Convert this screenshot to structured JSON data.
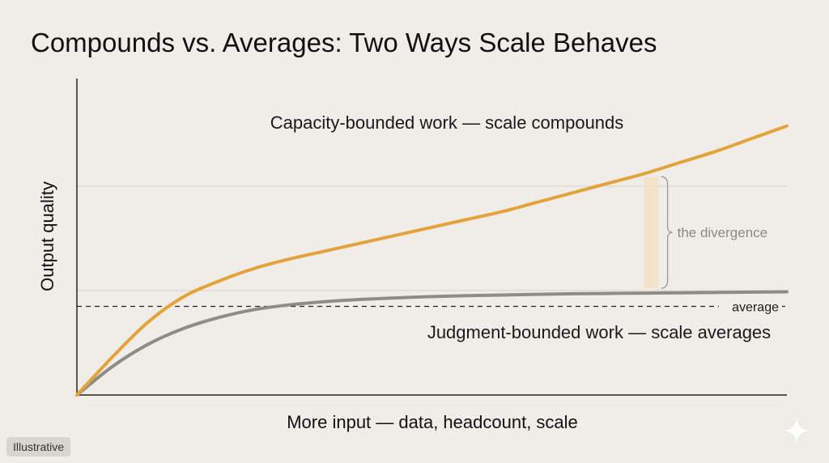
{
  "chart_data": {
    "type": "line",
    "title": "Compounds vs. Averages: Two Ways Scale Behaves",
    "xlabel": "More input — data, headcount, scale",
    "ylabel": "Output quality",
    "x": [
      0,
      0.05,
      0.1,
      0.15,
      0.2,
      0.25,
      0.3,
      0.35,
      0.4,
      0.45,
      0.5,
      0.55,
      0.6,
      0.65,
      0.7,
      0.75,
      0.8,
      0.85,
      0.9,
      0.95,
      1
    ],
    "xlim": [
      0,
      1
    ],
    "ylim": [
      0,
      1
    ],
    "grid": "horizontal",
    "series": [
      {
        "name": "Capacity-bounded work — scale compounds",
        "color": "#e3a33a",
        "values": [
          0,
          0.12,
          0.23,
          0.31,
          0.36,
          0.4,
          0.43,
          0.455,
          0.48,
          0.505,
          0.53,
          0.555,
          0.58,
          0.61,
          0.64,
          0.67,
          0.7,
          0.735,
          0.77,
          0.81,
          0.85
        ]
      },
      {
        "name": "Judgment-bounded work — scale averages",
        "color": "#8f8c88",
        "values": [
          0,
          0.09,
          0.16,
          0.21,
          0.245,
          0.27,
          0.285,
          0.295,
          0.302,
          0.307,
          0.311,
          0.314,
          0.316,
          0.318,
          0.32,
          0.321,
          0.322,
          0.323,
          0.324,
          0.325,
          0.326
        ]
      }
    ],
    "reference_line": {
      "label": "average",
      "y": 0.28
    },
    "annotation": {
      "label": "the divergence",
      "x": 0.8
    }
  },
  "badge": {
    "label": "Illustrative"
  },
  "icons": {
    "corner": "sparkle-icon"
  }
}
